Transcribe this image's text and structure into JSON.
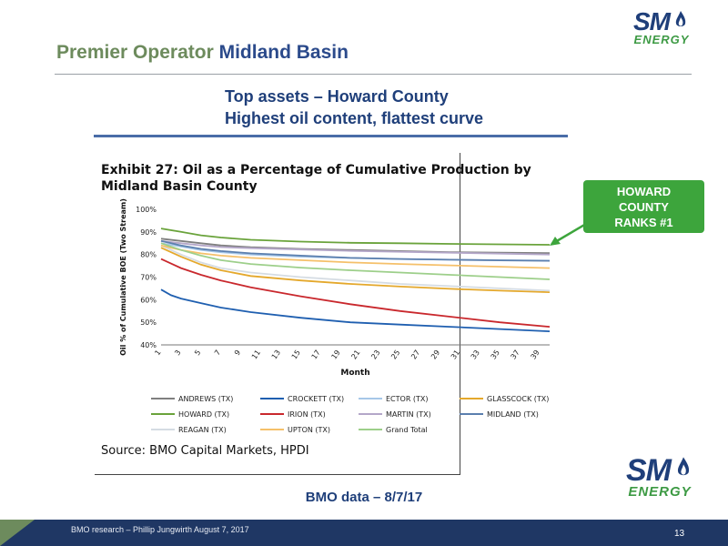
{
  "slide": {
    "title_part1": "Premier Operator",
    "title_part2": "Midland Basin",
    "subtitle_line1": "Top assets – Howard County",
    "subtitle_line2": "Highest oil content, flattest curve",
    "callout": [
      "HOWARD",
      "COUNTY",
      "RANKS #1"
    ],
    "bmo_data": "BMO data – 8/7/17",
    "footer_text": "BMO research – Phillip Jungwirth August 7, 2017",
    "page_number": "13",
    "logo": {
      "sm": "SM",
      "energy": "ENERGY"
    }
  },
  "colors": {
    "title_green": "#6d8b5d",
    "title_blue": "#2b4a8b",
    "callout_green": "#3da53c",
    "footer_navy": "#1f3764"
  },
  "chart_data": {
    "type": "line",
    "title_line1": "Exhibit 27: Oil as a Percentage of Cumulative Production by",
    "title_line2": "Midland Basin County",
    "source": "Source: BMO Capital Markets, HPDI",
    "xlabel": "Month",
    "ylabel": "Oil % of Cumulative BOE (Two Stream)",
    "x_ticks": [
      1,
      3,
      5,
      7,
      9,
      11,
      13,
      15,
      17,
      19,
      21,
      23,
      25,
      27,
      29,
      31,
      33,
      35,
      37,
      39
    ],
    "x_range": [
      1,
      40
    ],
    "ylim": [
      40,
      100
    ],
    "y_ticks": [
      "40%",
      "50%",
      "60%",
      "70%",
      "80%",
      "90%",
      "100%"
    ],
    "grid": false,
    "legend_position": "bottom",
    "series": [
      {
        "name": "ANDREWS (TX)",
        "color": "#7f7f7f",
        "x": [
          1,
          3,
          5,
          7,
          10,
          15,
          20,
          25,
          30,
          35,
          40
        ],
        "y": [
          87,
          86,
          85,
          84,
          83.2,
          82.5,
          82,
          81.5,
          81,
          80.8,
          80.6
        ]
      },
      {
        "name": "CROCKETT (TX)",
        "color": "#1f5fb0",
        "x": [
          1,
          2,
          3,
          5,
          7,
          10,
          15,
          20,
          25,
          30,
          35,
          40
        ],
        "y": [
          64.5,
          62,
          60.5,
          58.5,
          56.5,
          54.5,
          52,
          50,
          49,
          48,
          47,
          46
        ]
      },
      {
        "name": "ECTOR (TX)",
        "color": "#a6c7e8",
        "x": [
          1,
          3,
          5,
          7,
          10,
          15,
          20,
          25,
          30,
          35,
          40
        ],
        "y": [
          85,
          83.5,
          82,
          81,
          80,
          79,
          78.5,
          78,
          77.7,
          77.5,
          77.3
        ]
      },
      {
        "name": "GLASSCOCK (TX)",
        "color": "#e4a82c",
        "x": [
          1,
          3,
          5,
          7,
          10,
          15,
          20,
          25,
          30,
          35,
          40
        ],
        "y": [
          83,
          79,
          75.5,
          73,
          70.5,
          68.5,
          67,
          65.8,
          64.8,
          64,
          63.3
        ]
      },
      {
        "name": "HOWARD (TX)",
        "color": "#6aa33b",
        "x": [
          1,
          3,
          5,
          7,
          10,
          15,
          20,
          25,
          30,
          35,
          40
        ],
        "y": [
          91.5,
          90,
          88.5,
          87.5,
          86.5,
          85.7,
          85.2,
          85,
          84.7,
          84.5,
          84.3
        ]
      },
      {
        "name": "IRION (TX)",
        "color": "#c9282d",
        "x": [
          1,
          2,
          3,
          5,
          7,
          10,
          15,
          20,
          25,
          30,
          35,
          40
        ],
        "y": [
          78,
          76,
          74,
          71,
          68.5,
          65.5,
          61.5,
          58,
          55,
          52.5,
          50,
          48
        ]
      },
      {
        "name": "MARTIN (TX)",
        "color": "#b4a7c9",
        "x": [
          1,
          3,
          5,
          7,
          10,
          15,
          20,
          25,
          30,
          35,
          40
        ],
        "y": [
          86,
          85,
          84,
          83.3,
          82.8,
          82.2,
          81.6,
          81.2,
          80.8,
          80.4,
          80
        ]
      },
      {
        "name": "MIDLAND (TX)",
        "color": "#5b7fae",
        "x": [
          1,
          3,
          5,
          7,
          10,
          15,
          20,
          25,
          30,
          35,
          40
        ],
        "y": [
          86,
          84,
          82.5,
          81.5,
          80.5,
          79.5,
          78.5,
          78,
          77.7,
          77.4,
          77.2
        ]
      },
      {
        "name": "REAGAN (TX)",
        "color": "#d5dce3",
        "x": [
          1,
          3,
          5,
          7,
          10,
          15,
          20,
          25,
          30,
          35,
          40
        ],
        "y": [
          84,
          80,
          76.5,
          74,
          72,
          70,
          68.5,
          67,
          66,
          65,
          64
        ]
      },
      {
        "name": "UPTON (TX)",
        "color": "#f5c06a",
        "x": [
          1,
          3,
          5,
          7,
          10,
          15,
          20,
          25,
          30,
          35,
          40
        ],
        "y": [
          84,
          82,
          80.5,
          79.5,
          78.5,
          77.5,
          76.5,
          75.8,
          75.2,
          74.6,
          74
        ]
      },
      {
        "name": "Grand Total",
        "color": "#9dcf8a",
        "x": [
          1,
          3,
          5,
          7,
          10,
          15,
          20,
          25,
          30,
          35,
          40
        ],
        "y": [
          85,
          82,
          79.5,
          77.5,
          75.8,
          74.2,
          73,
          72,
          71,
          70,
          69
        ]
      }
    ]
  }
}
